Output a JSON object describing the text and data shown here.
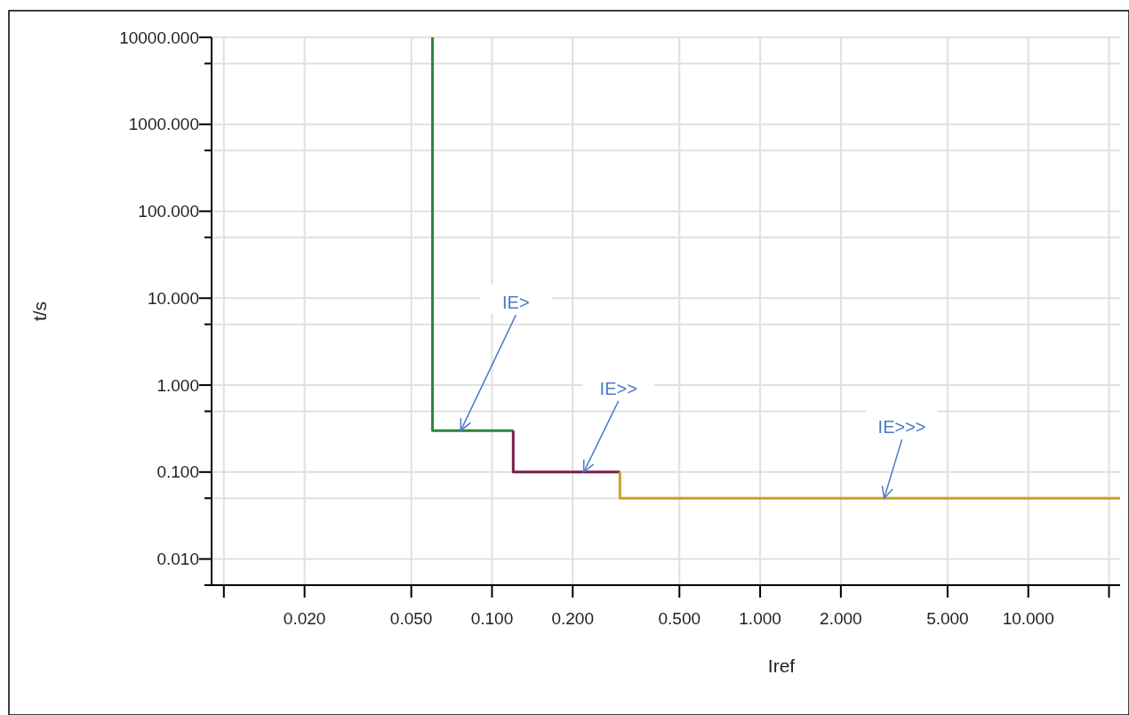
{
  "chart_data": {
    "type": "line",
    "xlabel": "Iref",
    "ylabel": "t/s",
    "log": "xy",
    "grid": true,
    "xlim": [
      0.009,
      22
    ],
    "ylim": [
      0.005,
      10000
    ],
    "xticks": [
      {
        "value": 0.01,
        "label": null
      },
      {
        "value": 0.02,
        "label": "0.020"
      },
      {
        "value": 0.05,
        "label": "0.050"
      },
      {
        "value": 0.1,
        "label": "0.100"
      },
      {
        "value": 0.2,
        "label": "0.200"
      },
      {
        "value": 0.5,
        "label": "0.500"
      },
      {
        "value": 1,
        "label": "1.000"
      },
      {
        "value": 2,
        "label": "2.000"
      },
      {
        "value": 5,
        "label": "5.000"
      },
      {
        "value": 10,
        "label": "10.000"
      },
      {
        "value": 20,
        "label": null
      }
    ],
    "yticks": [
      {
        "value": 0.005,
        "label": null
      },
      {
        "value": 0.01,
        "label": "0.010"
      },
      {
        "value": 0.05,
        "label": null
      },
      {
        "value": 0.1,
        "label": "0.100"
      },
      {
        "value": 0.5,
        "label": null
      },
      {
        "value": 1,
        "label": "1.000"
      },
      {
        "value": 5,
        "label": null
      },
      {
        "value": 10,
        "label": "10.000"
      },
      {
        "value": 50,
        "label": null
      },
      {
        "value": 100,
        "label": "100.000"
      },
      {
        "value": 500,
        "label": null
      },
      {
        "value": 1000,
        "label": "1000.000"
      },
      {
        "value": 5000,
        "label": null
      },
      {
        "value": 10000,
        "label": "10000.000"
      }
    ],
    "series": [
      {
        "color": "#2e8540",
        "x": [
          0.06,
          0.06,
          0.12
        ],
        "values": [
          10000,
          0.3,
          0.3
        ]
      },
      {
        "color": "#7a1f4c",
        "x": [
          0.12,
          0.12,
          0.3
        ],
        "values": [
          0.3,
          0.1,
          0.1
        ]
      },
      {
        "color": "#c9a227",
        "x": [
          0.3,
          0.3,
          22
        ],
        "values": [
          0.1,
          0.05,
          0.05
        ]
      }
    ],
    "annotations": [
      {
        "text": "IE>",
        "x": 0.0765,
        "y": 0.3
      },
      {
        "text": "IE>>",
        "x": 0.22,
        "y": 0.1
      },
      {
        "text": "IE>>>",
        "x": 2.9,
        "y": 0.05
      }
    ]
  }
}
